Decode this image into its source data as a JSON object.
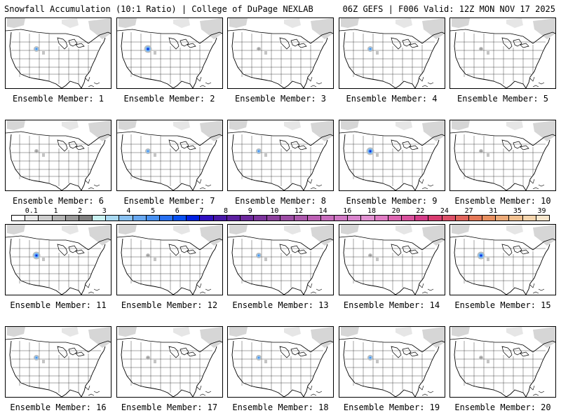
{
  "header": {
    "title": "Snowfall Accumulation (10:1 Ratio) | College of DuPage NEXLAB",
    "valid": "06Z GEFS | F006 Valid: 12Z MON NOV 17 2025"
  },
  "panels": [
    {
      "label": "Ensemble Member: 1",
      "snow": "moderate"
    },
    {
      "label": "Ensemble Member: 2",
      "snow": "heavy"
    },
    {
      "label": "Ensemble Member: 3",
      "snow": "light"
    },
    {
      "label": "Ensemble Member: 4",
      "snow": "moderate"
    },
    {
      "label": "Ensemble Member: 5",
      "snow": "light"
    },
    {
      "label": "Ensemble Member: 6",
      "snow": "light"
    },
    {
      "label": "Ensemble Member: 7",
      "snow": "moderate"
    },
    {
      "label": "Ensemble Member: 8",
      "snow": "moderate"
    },
    {
      "label": "Ensemble Member: 9",
      "snow": "heavy"
    },
    {
      "label": "Ensemble Member: 10",
      "snow": "light"
    },
    {
      "label": "Ensemble Member: 11",
      "snow": "heavy"
    },
    {
      "label": "Ensemble Member: 12",
      "snow": "light"
    },
    {
      "label": "Ensemble Member: 13",
      "snow": "moderate"
    },
    {
      "label": "Ensemble Member: 14",
      "snow": "light"
    },
    {
      "label": "Ensemble Member: 15",
      "snow": "heavy"
    },
    {
      "label": "Ensemble Member: 16",
      "snow": "moderate"
    },
    {
      "label": "Ensemble Member: 17",
      "snow": "light"
    },
    {
      "label": "Ensemble Member: 18",
      "snow": "moderate"
    },
    {
      "label": "Ensemble Member: 19",
      "snow": "moderate"
    },
    {
      "label": "Ensemble Member: 20",
      "snow": "light"
    }
  ],
  "legend": {
    "labels": [
      "0.1",
      "1",
      "2",
      "3",
      "4",
      "5",
      "6",
      "7",
      "8",
      "9",
      "10",
      "12",
      "14",
      "16",
      "18",
      "20",
      "22",
      "24",
      "27",
      "31",
      "35",
      "39"
    ],
    "colors": [
      "#ffffff",
      "#e6e6e6",
      "#cccccc",
      "#b4b4b4",
      "#9a9a9a",
      "#808080",
      "#c8f0f0",
      "#a8d8f0",
      "#88c0f0",
      "#68a8f0",
      "#4890f0",
      "#2870f0",
      "#0850f0",
      "#0020e0",
      "#3010c0",
      "#4818a8",
      "#5c20a0",
      "#6c289c",
      "#7c349c",
      "#8c409c",
      "#9c4ca4",
      "#ac58ac",
      "#bc60b4",
      "#c86cbc",
      "#d078c4",
      "#d884cc",
      "#e090d0",
      "#e07cc4",
      "#dc64b0",
      "#d8509c",
      "#d43c88",
      "#d83c70",
      "#dc5068",
      "#e0645c",
      "#e47858",
      "#e89060",
      "#ecaa78",
      "#f0c090",
      "#f4d4ac",
      "#f8e6cc"
    ]
  }
}
